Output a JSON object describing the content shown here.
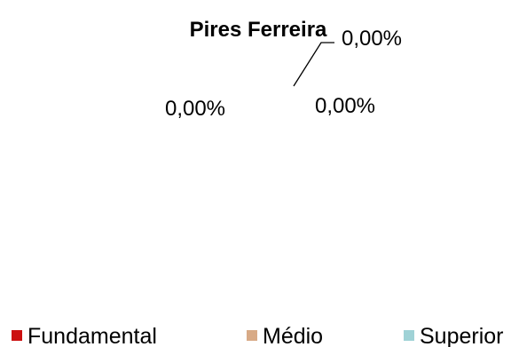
{
  "chart_data": {
    "type": "pie",
    "title": "Pires Ferreira",
    "categories": [
      "Fundamental",
      "Médio",
      "Superior"
    ],
    "values": [
      0,
      0,
      0
    ],
    "data_labels": [
      "0,00%",
      "0,00%",
      "0,00%"
    ],
    "colors": [
      "#cc1111",
      "#d8aa86",
      "#9fd2d6"
    ],
    "legend_position": "bottom"
  }
}
